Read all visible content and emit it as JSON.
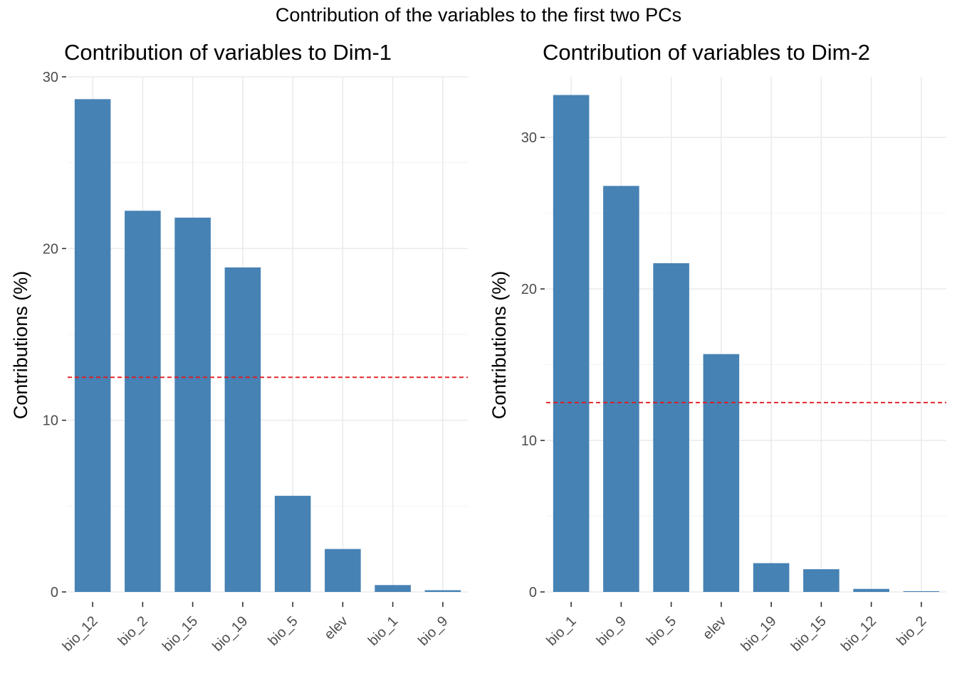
{
  "figure_title": "Contribution of the variables to the first two PCs",
  "chart_data": [
    {
      "type": "bar",
      "title": "Contribution of variables to Dim-1",
      "xlabel": "",
      "ylabel": "Contributions (%)",
      "categories": [
        "bio_12",
        "bio_2",
        "bio_15",
        "bio_19",
        "bio_5",
        "elev",
        "bio_1",
        "bio_9"
      ],
      "values": [
        28.7,
        22.2,
        21.8,
        18.9,
        5.6,
        2.5,
        0.4,
        0.1
      ],
      "reference_line": 12.5,
      "ylim": [
        0,
        30
      ],
      "yticks": [
        0,
        10,
        20,
        30
      ],
      "grid": true,
      "bar_color": "#4682b4",
      "reference_color": "#e31a1c"
    },
    {
      "type": "bar",
      "title": "Contribution of variables to Dim-2",
      "xlabel": "",
      "ylabel": "Contributions (%)",
      "categories": [
        "bio_1",
        "bio_9",
        "bio_5",
        "elev",
        "bio_19",
        "bio_15",
        "bio_12",
        "bio_2"
      ],
      "values": [
        32.8,
        26.8,
        21.7,
        15.7,
        1.9,
        1.5,
        0.2,
        0.05
      ],
      "reference_line": 12.5,
      "ylim": [
        0,
        34
      ],
      "yticks": [
        0,
        10,
        20,
        30
      ],
      "grid": true,
      "bar_color": "#4682b4",
      "reference_color": "#e31a1c"
    }
  ]
}
